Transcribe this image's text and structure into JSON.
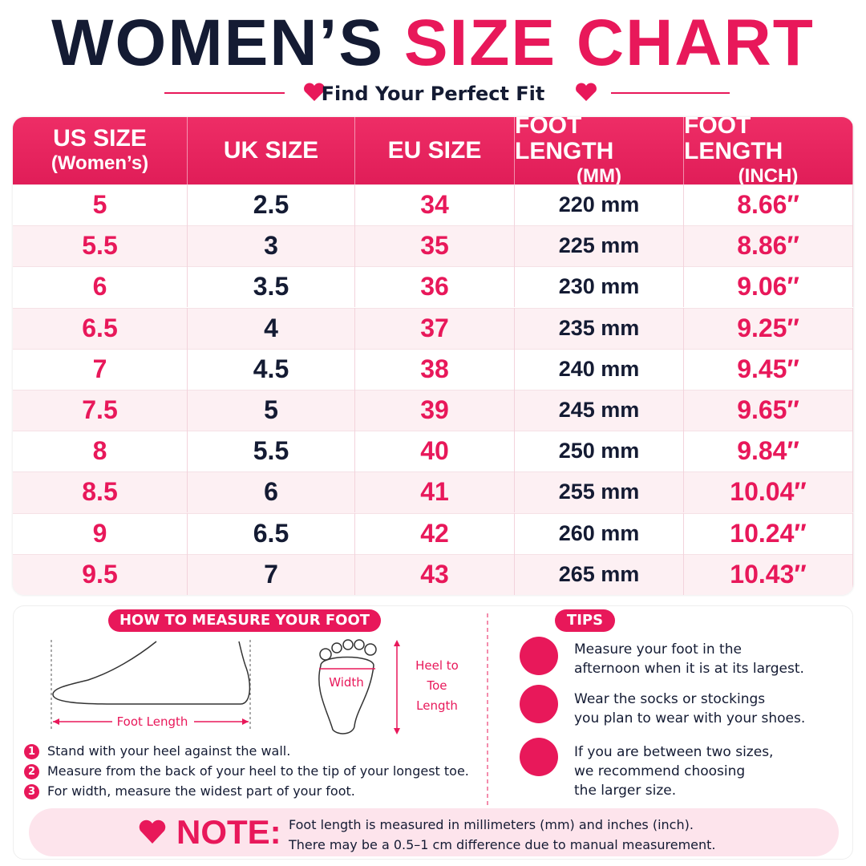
{
  "header": {
    "title_dark": "WOMEN’S",
    "title_pink": "SIZE CHART",
    "subtitle": "Find Your Perfect Fit"
  },
  "table": {
    "columns": [
      [
        "US SIZE",
        "(Women’s)"
      ],
      [
        "UK SIZE"
      ],
      [
        "EU SIZE"
      ],
      [
        "FOOT LENGTH",
        "(MM)"
      ],
      [
        "FOOT LENGTH",
        "(INCH)"
      ]
    ],
    "rows": [
      [
        "5",
        "2.5",
        "34",
        "220 mm",
        "8.66″"
      ],
      [
        "5.5",
        "3",
        "35",
        "225 mm",
        "8.86″"
      ],
      [
        "6",
        "3.5",
        "36",
        "230 mm",
        "9.06″"
      ],
      [
        "6.5",
        "4",
        "37",
        "235 mm",
        "9.25″"
      ],
      [
        "7",
        "4.5",
        "38",
        "240 mm",
        "9.45″"
      ],
      [
        "7.5",
        "5",
        "39",
        "245 mm",
        "9.65″"
      ],
      [
        "8",
        "5.5",
        "40",
        "250 mm",
        "9.84″"
      ],
      [
        "8.5",
        "6",
        "41",
        "255 mm",
        "10.04″"
      ],
      [
        "9",
        "6.5",
        "42",
        "260 mm",
        "10.24″"
      ],
      [
        "9.5",
        "7",
        "43",
        "265 mm",
        "10.43″"
      ]
    ]
  },
  "measure": {
    "heading": "HOW TO MEASURE YOUR FOOT",
    "foot_length_label": "Foot Length",
    "width_label": "Width",
    "heel_to_toe_label": [
      "Heel to",
      "Toe",
      "Length"
    ],
    "steps": [
      {
        "number": "1",
        "text": "Stand with your heel against the wall."
      },
      {
        "number": "2",
        "text": "Measure from the back of your heel to the tip of your longest toe."
      },
      {
        "number": "3",
        "text": "For width, measure the widest part of your foot."
      }
    ]
  },
  "tips": {
    "heading": "TIPS",
    "items": [
      [
        "Measure your foot in the",
        "afternoon when it is at its largest."
      ],
      [
        "Wear the socks or stockings",
        "you plan to wear with your shoes."
      ],
      [
        "If you are between two sizes,",
        "we recommend choosing",
        "the larger size."
      ]
    ]
  },
  "note": {
    "label": "NOTE:",
    "lines": [
      "Foot length is measured in millimeters (mm) and inches (inch).",
      "There may be a 0.5–1 cm difference due to manual measurement."
    ]
  }
}
